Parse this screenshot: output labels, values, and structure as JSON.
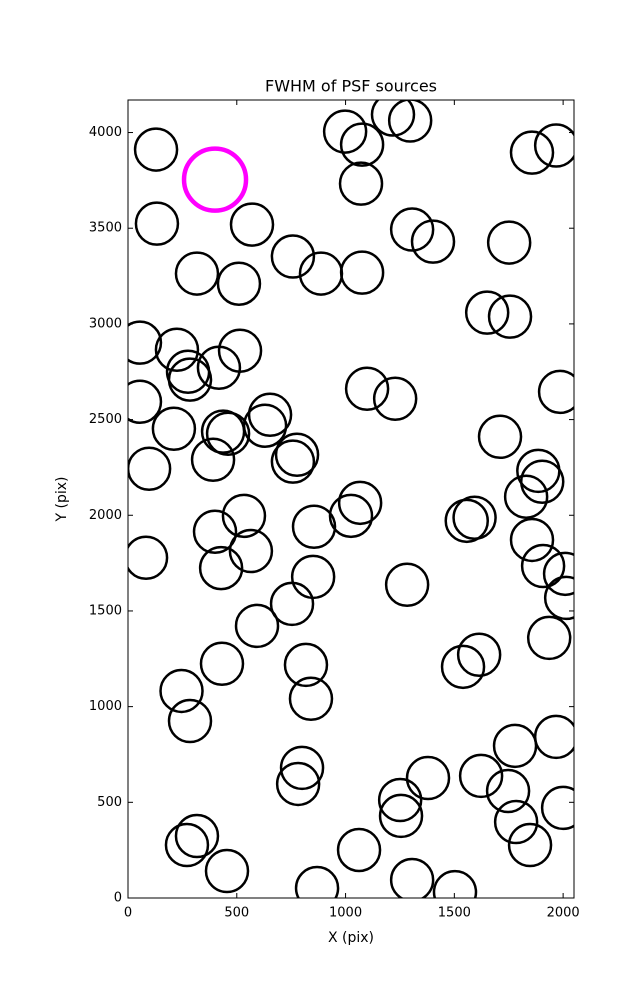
{
  "chart_data": {
    "type": "scatter",
    "title": "FWHM of PSF sources",
    "x_label": "X (pix)",
    "y_label": "Y (pix)",
    "xlim": [
      0,
      2050
    ],
    "ylim": [
      0,
      4170
    ],
    "xticks": [
      0,
      500,
      1000,
      1500,
      2000
    ],
    "yticks": [
      0,
      500,
      1000,
      1500,
      2000,
      2500,
      3000,
      3500,
      4000
    ],
    "series": [
      {
        "color": "#000000",
        "x": [
          129,
          133,
          998,
          1076,
          1218,
          1297,
          1857,
          1968,
          1071,
          570,
          317,
          510,
          758,
          887,
          1076,
          1306,
          1402,
          1752,
          1651,
          1756,
          55,
          225,
          515,
          418,
          285,
          276,
          55,
          211,
          437,
          460,
          653,
          630,
          1099,
          1228,
          1986,
          1710,
          391,
          777,
          758,
          97,
          1886,
          1904,
          1830,
          1067,
          1025,
          533,
          400,
          855,
          1557,
          1593,
          1857,
          565,
          428,
          83,
          1908,
          2009,
          2014,
          851,
          1283,
          754,
          593,
          1936,
          1614,
          1540,
          432,
          818,
          841,
          246,
          285,
          1968,
          1779,
          800,
          782,
          1379,
          1623,
          1747,
          1251,
          1255,
          1784,
          2000,
          1848,
          317,
          271,
          1062,
          455,
          1306,
          869,
          1503
        ],
        "y": [
          3911,
          3524,
          4005,
          3937,
          4094,
          4063,
          3895,
          3932,
          3733,
          3519,
          3263,
          3210,
          3352,
          3263,
          3268,
          3493,
          3430,
          3425,
          3059,
          3038,
          2902,
          2865,
          2860,
          2771,
          2709,
          2750,
          2593,
          2452,
          2437,
          2426,
          2525,
          2468,
          2661,
          2609,
          2645,
          2410,
          2290,
          2316,
          2280,
          2243,
          2232,
          2175,
          2097,
          2065,
          1997,
          1997,
          1914,
          1940,
          1971,
          1987,
          1871,
          1813,
          1724,
          1778,
          1735,
          1694,
          1568,
          1678,
          1637,
          1537,
          1422,
          1359,
          1271,
          1208,
          1224,
          1218,
          1041,
          1082,
          925,
          842,
          795,
          680,
          596,
          627,
          638,
          559,
          512,
          429,
          397,
          471,
          277,
          324,
          277,
          251,
          141,
          94,
          52,
          31
        ]
      },
      {
        "color": "#ff00ff",
        "x": [
          400
        ],
        "y": [
          3754
        ]
      }
    ]
  }
}
